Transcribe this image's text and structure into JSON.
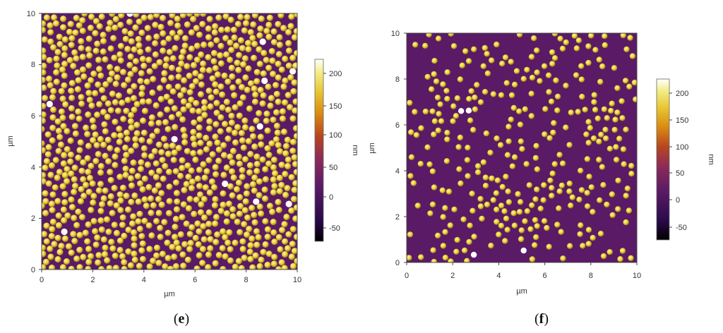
{
  "panels": [
    {
      "id": "e",
      "caption_open": "(",
      "caption_letter": "e",
      "caption_close": ")",
      "x_axis_label": "µm",
      "y_axis_label": "µm",
      "x_ticks": [
        "0",
        "2",
        "4",
        "6",
        "8",
        "10"
      ],
      "y_ticks": [
        "0",
        "2",
        "4",
        "6",
        "8",
        "10"
      ],
      "colorbar_label": "nm",
      "colorbar_ticks": [
        "200",
        "150",
        "100",
        "50",
        "0",
        "-50"
      ],
      "particle_coverage": "dense"
    },
    {
      "id": "f",
      "caption_open": "(",
      "caption_letter": "f",
      "caption_close": ")",
      "x_axis_label": "µm",
      "y_axis_label": "µm",
      "x_ticks": [
        "0",
        "2",
        "4",
        "6",
        "8",
        "10"
      ],
      "y_ticks": [
        "0",
        "2",
        "4",
        "6",
        "8",
        "10"
      ],
      "colorbar_label": "nm",
      "colorbar_ticks": [
        "200",
        "150",
        "100",
        "50",
        "0",
        "-50"
      ],
      "particle_coverage": "sparse"
    }
  ],
  "colors": {
    "background": "#5a1a66",
    "particle": "#e8d33a",
    "particle_highlight": "#fff6a8",
    "particle_edge": "#a07c18",
    "colormap": [
      "#000000",
      "#2a0a4a",
      "#5a1a66",
      "#8a2a5a",
      "#b8461e",
      "#d98a12",
      "#e8c532",
      "#f3ee8a",
      "#ffffff"
    ]
  }
}
